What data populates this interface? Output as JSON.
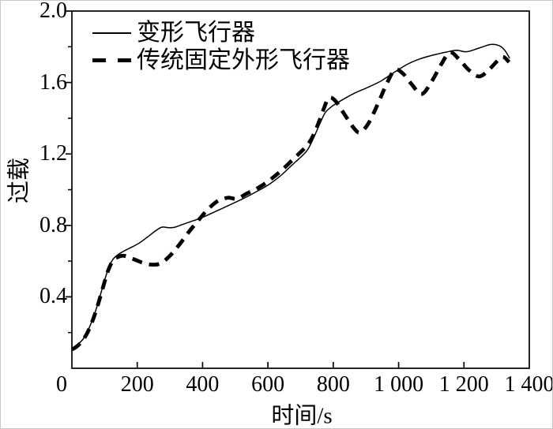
{
  "figure": {
    "background": "#ffffff",
    "line_color": "#000000"
  },
  "chart_data": {
    "type": "line",
    "title": "",
    "xlabel": "时间/s",
    "ylabel": "过载",
    "xlim": [
      0,
      1400
    ],
    "ylim": [
      0,
      2.0
    ],
    "grid": false,
    "legend_position": "top-left-inside",
    "x_major_ticks": [
      0,
      200,
      400,
      600,
      800,
      1000,
      1200,
      1400
    ],
    "x_tick_labels": [
      "0",
      "200",
      "400",
      "600",
      "800",
      "1 000",
      "1 200",
      "1 400"
    ],
    "y_major_ticks": [
      0.4,
      0.8,
      1.2,
      1.6,
      2.0
    ],
    "y_tick_labels": [
      "0.4",
      "0.8",
      "1.2",
      "1.6",
      "2.0"
    ],
    "y_minor_ticks": [
      0.2,
      0.6,
      1.0,
      1.4,
      1.8
    ],
    "series": [
      {
        "name": "变形飞行器",
        "style": "solid",
        "color": "#000000",
        "stroke_width": 1.5,
        "points": [
          [
            0,
            0.11
          ],
          [
            15,
            0.13
          ],
          [
            35,
            0.165
          ],
          [
            55,
            0.235
          ],
          [
            75,
            0.335
          ],
          [
            95,
            0.46
          ],
          [
            110,
            0.55
          ],
          [
            122,
            0.6
          ],
          [
            135,
            0.628
          ],
          [
            155,
            0.652
          ],
          [
            180,
            0.675
          ],
          [
            205,
            0.7
          ],
          [
            230,
            0.733
          ],
          [
            255,
            0.768
          ],
          [
            275,
            0.79
          ],
          [
            295,
            0.787
          ],
          [
            315,
            0.79
          ],
          [
            340,
            0.806
          ],
          [
            370,
            0.825
          ],
          [
            400,
            0.845
          ],
          [
            440,
            0.878
          ],
          [
            480,
            0.912
          ],
          [
            520,
            0.946
          ],
          [
            560,
            0.984
          ],
          [
            600,
            1.025
          ],
          [
            640,
            1.08
          ],
          [
            675,
            1.14
          ],
          [
            705,
            1.19
          ],
          [
            722,
            1.225
          ],
          [
            740,
            1.29
          ],
          [
            758,
            1.365
          ],
          [
            775,
            1.43
          ],
          [
            795,
            1.465
          ],
          [
            825,
            1.5
          ],
          [
            865,
            1.54
          ],
          [
            905,
            1.572
          ],
          [
            945,
            1.607
          ],
          [
            985,
            1.655
          ],
          [
            1025,
            1.7
          ],
          [
            1065,
            1.732
          ],
          [
            1105,
            1.753
          ],
          [
            1145,
            1.77
          ],
          [
            1178,
            1.78
          ],
          [
            1208,
            1.772
          ],
          [
            1245,
            1.792
          ],
          [
            1282,
            1.813
          ],
          [
            1308,
            1.806
          ],
          [
            1325,
            1.78
          ],
          [
            1340,
            1.735
          ]
        ]
      },
      {
        "name": "传统固定外形飞行器",
        "style": "dashed",
        "color": "#000000",
        "stroke_width": 4.8,
        "dash": [
          13,
          9
        ],
        "points": [
          [
            0,
            0.105
          ],
          [
            15,
            0.122
          ],
          [
            35,
            0.16
          ],
          [
            55,
            0.228
          ],
          [
            75,
            0.328
          ],
          [
            95,
            0.452
          ],
          [
            110,
            0.542
          ],
          [
            122,
            0.592
          ],
          [
            135,
            0.618
          ],
          [
            158,
            0.63
          ],
          [
            185,
            0.614
          ],
          [
            215,
            0.592
          ],
          [
            245,
            0.58
          ],
          [
            272,
            0.588
          ],
          [
            300,
            0.63
          ],
          [
            330,
            0.695
          ],
          [
            360,
            0.768
          ],
          [
            390,
            0.835
          ],
          [
            418,
            0.893
          ],
          [
            448,
            0.938
          ],
          [
            478,
            0.955
          ],
          [
            505,
            0.949
          ],
          [
            535,
            0.978
          ],
          [
            565,
            1.005
          ],
          [
            600,
            1.046
          ],
          [
            640,
            1.105
          ],
          [
            678,
            1.172
          ],
          [
            710,
            1.228
          ],
          [
            732,
            1.28
          ],
          [
            752,
            1.36
          ],
          [
            770,
            1.448
          ],
          [
            786,
            1.513
          ],
          [
            806,
            1.498
          ],
          [
            835,
            1.42
          ],
          [
            862,
            1.347
          ],
          [
            882,
            1.32
          ],
          [
            908,
            1.372
          ],
          [
            936,
            1.478
          ],
          [
            964,
            1.595
          ],
          [
            988,
            1.67
          ],
          [
            1012,
            1.652
          ],
          [
            1040,
            1.59
          ],
          [
            1070,
            1.535
          ],
          [
            1100,
            1.602
          ],
          [
            1130,
            1.7
          ],
          [
            1157,
            1.768
          ],
          [
            1186,
            1.728
          ],
          [
            1216,
            1.668
          ],
          [
            1248,
            1.634
          ],
          [
            1280,
            1.678
          ],
          [
            1308,
            1.732
          ],
          [
            1322,
            1.742
          ],
          [
            1338,
            1.714
          ]
        ]
      }
    ]
  }
}
